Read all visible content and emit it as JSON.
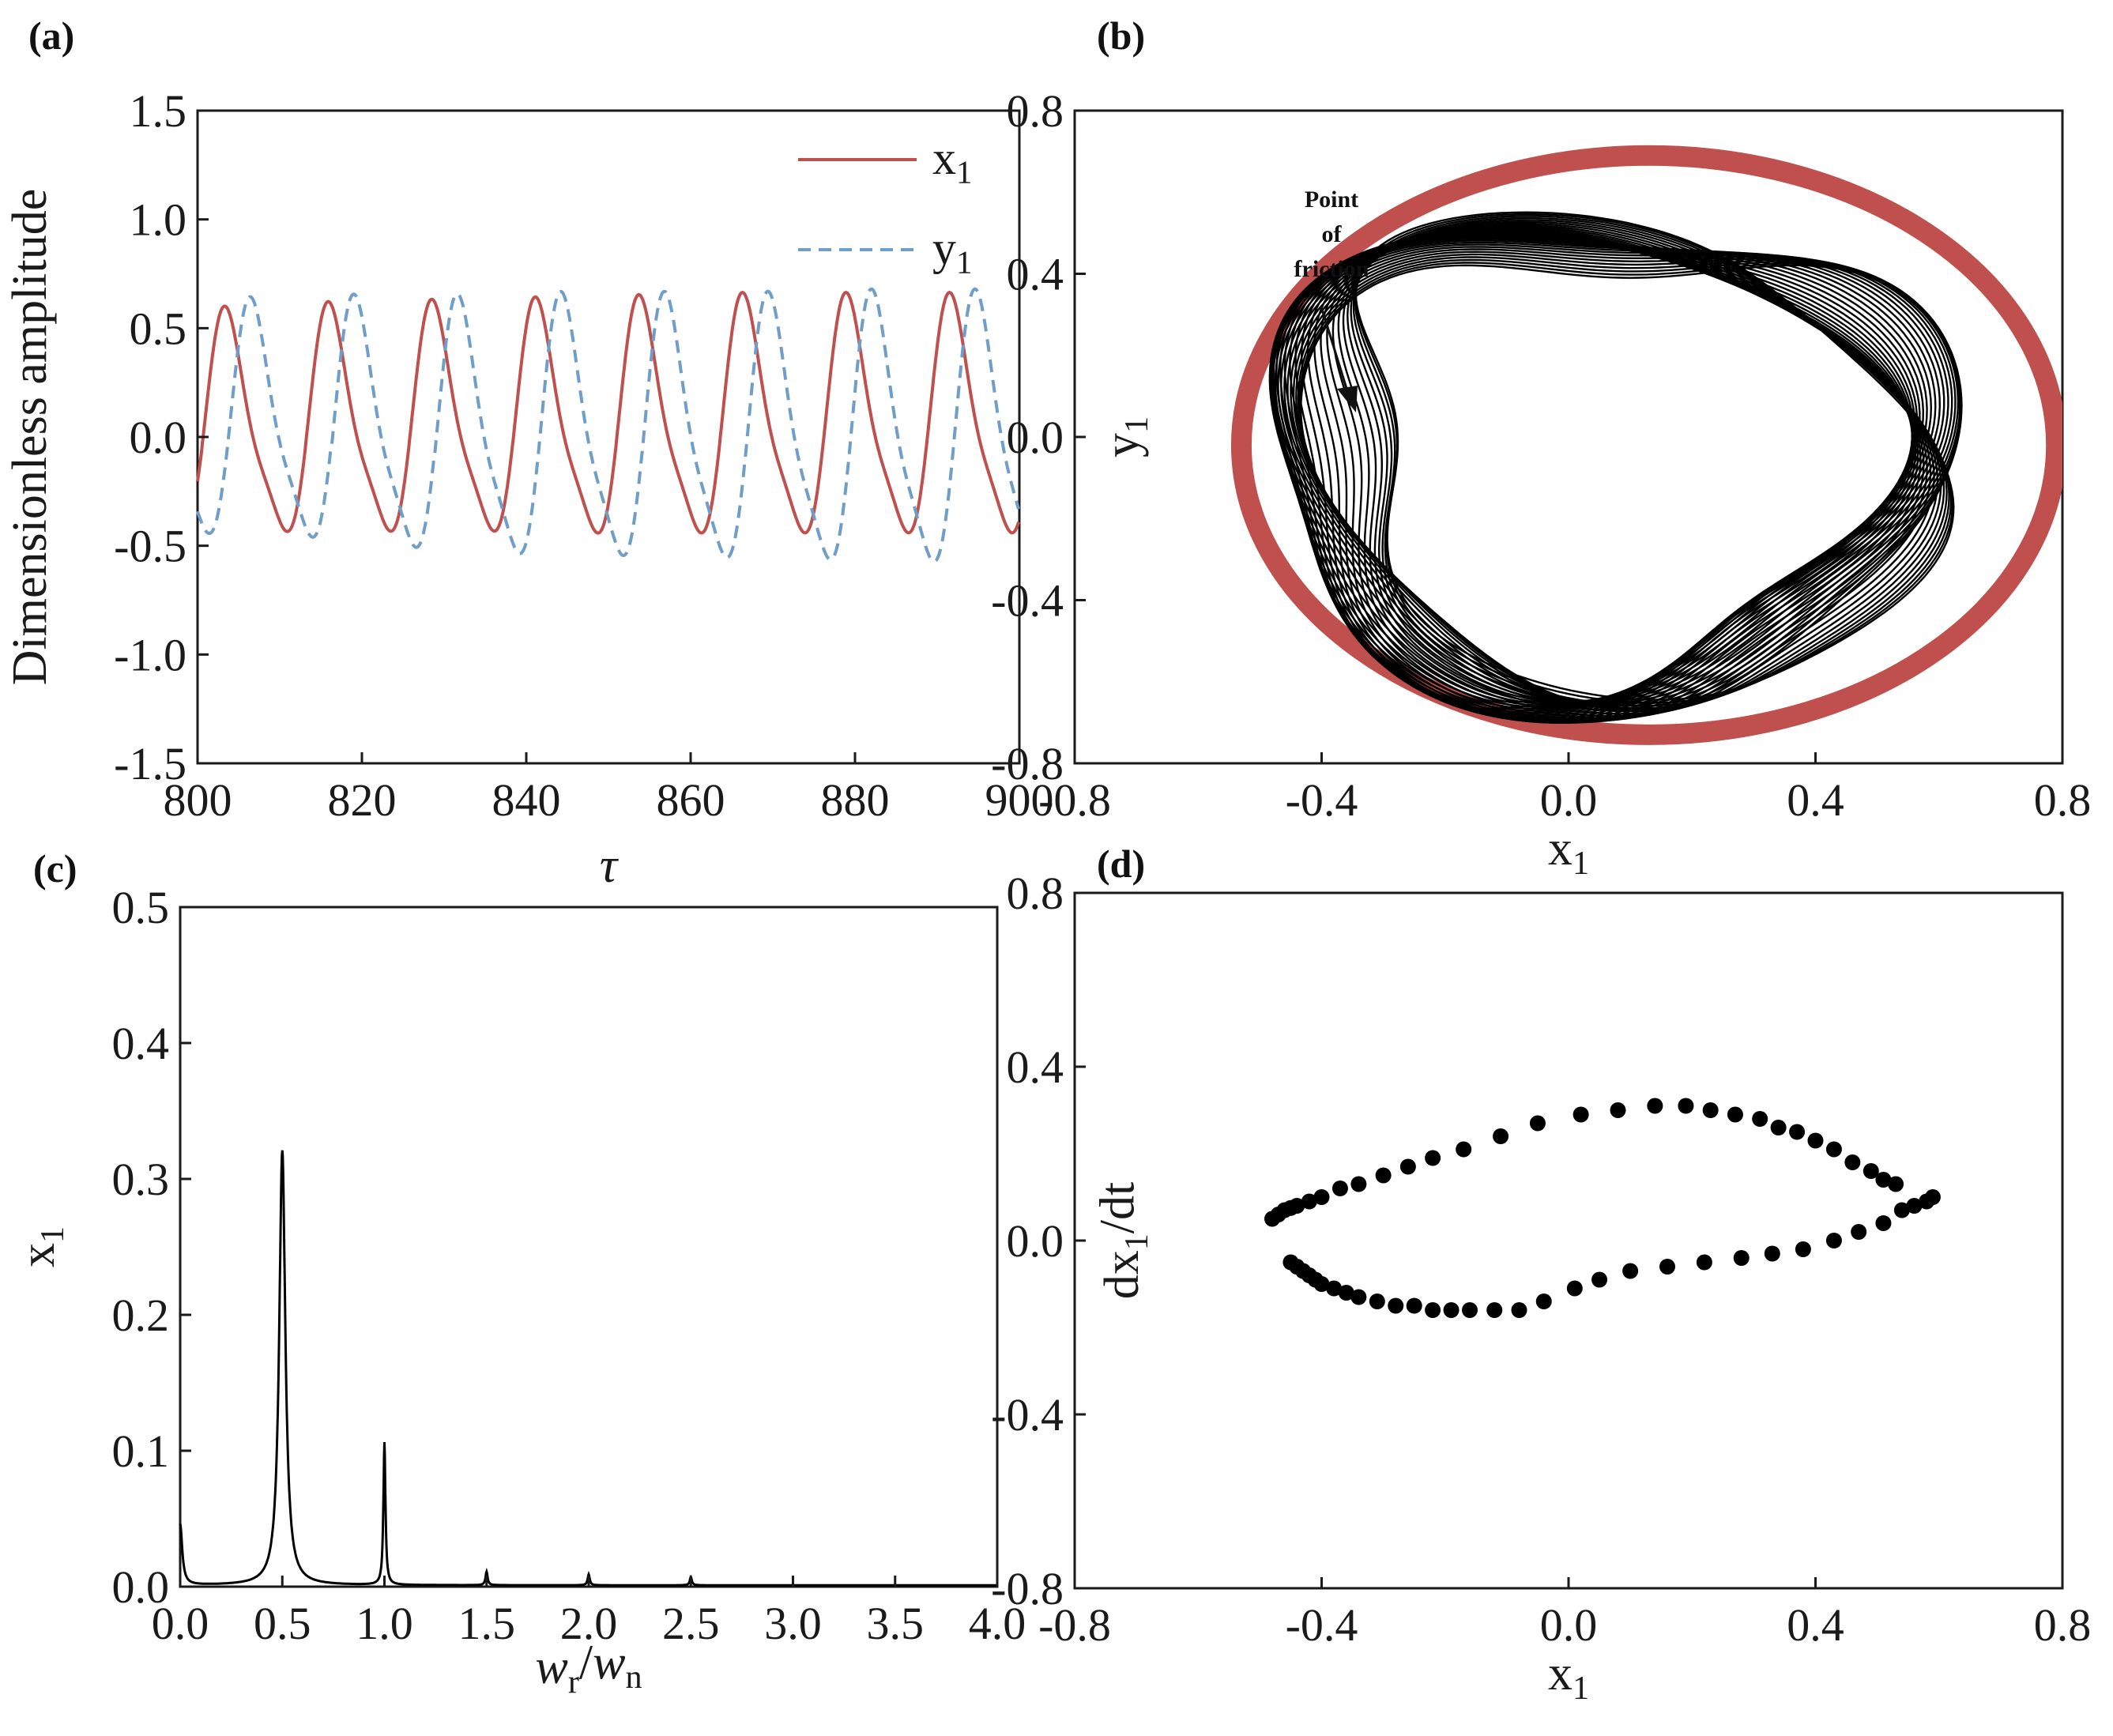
{
  "colors": {
    "red": "#c0504d",
    "blue": "#6f9ec8",
    "black": "#000000"
  },
  "chart_data": [
    {
      "id": "a",
      "panel_label": "(a)",
      "type": "line",
      "xlabel": "τ",
      "ylabel": "Dimensionless amplitude",
      "xlim": [
        800,
        900
      ],
      "ylim": [
        -1.5,
        1.5
      ],
      "xticks": [
        "800",
        "820",
        "840",
        "860",
        "880",
        "900"
      ],
      "yticks": [
        "1.5",
        "1.0",
        "0.5",
        "0.0",
        "-0.5",
        "-1.0",
        "-1.5"
      ],
      "legend_position": "top-right",
      "series": [
        {
          "name": "x",
          "sub": "1",
          "style": "solid",
          "color": "#c0504d",
          "period": 12.6,
          "phase_start": 800.6,
          "peaks": [
            0.52,
            0.56,
            0.58,
            0.59,
            0.6,
            0.61,
            0.62,
            0.62
          ],
          "troughs": [
            -0.47,
            -0.49,
            -0.49,
            -0.49,
            -0.5,
            -0.5,
            -0.5,
            -0.5
          ]
        },
        {
          "name": "y",
          "sub": "1",
          "style": "dashed",
          "color": "#6f9ec8",
          "period": 12.6,
          "phase_start": 803.7,
          "peaks": [
            0.57,
            0.6,
            0.61,
            0.61,
            0.62,
            0.62,
            0.62,
            0.63
          ],
          "troughs": [
            -0.5,
            -0.52,
            -0.57,
            -0.6,
            -0.61,
            -0.62,
            -0.63,
            -0.64
          ]
        }
      ]
    },
    {
      "id": "b",
      "panel_label": "(b)",
      "type": "line",
      "xlabel": "x",
      "xlabel_sub": "1",
      "ylabel": "y",
      "ylabel_sub": "1",
      "xlim": [
        -0.8,
        0.8
      ],
      "ylim": [
        -0.8,
        0.8
      ],
      "xticks": [
        "-0.8",
        "-0.4",
        "0.0",
        "0.4",
        "0.8"
      ],
      "yticks": [
        "0.8",
        "0.4",
        "0.0",
        "-0.4",
        "-0.8"
      ],
      "annotation": [
        "Point",
        "of",
        "friction"
      ],
      "rub_ring": {
        "center": [
          0.13,
          -0.02
        ],
        "radius_x": 0.66,
        "radius_y": 0.71,
        "color": "#c0504d"
      },
      "orbit": {
        "color": "#000000",
        "turns": 38
      }
    },
    {
      "id": "c",
      "panel_label": "(c)",
      "type": "line",
      "xlabel": "w",
      "xlabel_sub_r": "r",
      "xlabel_sub_n": "n",
      "ylabel": "x",
      "ylabel_sub": "1",
      "xlim": [
        0,
        4
      ],
      "ylim": [
        0,
        0.5
      ],
      "xticks": [
        "0.0",
        "0.5",
        "1.0",
        "1.5",
        "2.0",
        "2.5",
        "3.0",
        "3.5",
        "4.0"
      ],
      "yticks": [
        "0.5",
        "0.4",
        "0.3",
        "0.2",
        "0.1",
        "0.0"
      ],
      "peaks": [
        {
          "x": 0.0,
          "y": 0.045
        },
        {
          "x": 0.5,
          "y": 0.32
        },
        {
          "x": 1.0,
          "y": 0.105
        },
        {
          "x": 1.5,
          "y": 0.01
        },
        {
          "x": 2.0,
          "y": 0.008
        },
        {
          "x": 2.5,
          "y": 0.006
        }
      ]
    },
    {
      "id": "d",
      "panel_label": "(d)",
      "type": "scatter",
      "xlabel": "x",
      "xlabel_sub": "1",
      "ylabel": "dx",
      "ylabel_sub": "1",
      "ylabel_tail": "/dt",
      "xlim": [
        -0.8,
        0.8
      ],
      "ylim": [
        -0.8,
        0.8
      ],
      "xticks": [
        "-0.8",
        "-0.4",
        "0.0",
        "0.4",
        "0.8"
      ],
      "yticks": [
        "0.8",
        "0.4",
        "0.0",
        "-0.4",
        "-0.8"
      ],
      "points": [
        [
          -0.48,
          0.05
        ],
        [
          -0.47,
          0.06
        ],
        [
          -0.46,
          0.07
        ],
        [
          -0.45,
          0.075
        ],
        [
          -0.44,
          0.08
        ],
        [
          -0.42,
          0.09
        ],
        [
          -0.4,
          0.1
        ],
        [
          -0.37,
          0.12
        ],
        [
          -0.34,
          0.13
        ],
        [
          -0.3,
          0.15
        ],
        [
          -0.26,
          0.17
        ],
        [
          -0.22,
          0.19
        ],
        [
          -0.17,
          0.21
        ],
        [
          -0.11,
          0.24
        ],
        [
          -0.05,
          0.27
        ],
        [
          0.02,
          0.29
        ],
        [
          0.08,
          0.3
        ],
        [
          0.14,
          0.31
        ],
        [
          0.19,
          0.31
        ],
        [
          0.23,
          0.3
        ],
        [
          0.27,
          0.29
        ],
        [
          0.31,
          0.28
        ],
        [
          0.34,
          0.26
        ],
        [
          0.37,
          0.25
        ],
        [
          0.4,
          0.23
        ],
        [
          0.43,
          0.21
        ],
        [
          0.46,
          0.18
        ],
        [
          0.49,
          0.16
        ],
        [
          0.51,
          0.14
        ],
        [
          0.53,
          0.13
        ],
        [
          0.59,
          0.1
        ],
        [
          0.58,
          0.09
        ],
        [
          0.56,
          0.08
        ],
        [
          0.54,
          0.07
        ],
        [
          0.51,
          0.04
        ],
        [
          0.47,
          0.02
        ],
        [
          0.43,
          0.0
        ],
        [
          0.38,
          -0.02
        ],
        [
          0.33,
          -0.03
        ],
        [
          0.28,
          -0.04
        ],
        [
          0.22,
          -0.05
        ],
        [
          0.16,
          -0.06
        ],
        [
          0.1,
          -0.07
        ],
        [
          0.05,
          -0.09
        ],
        [
          0.01,
          -0.11
        ],
        [
          -0.04,
          -0.14
        ],
        [
          -0.08,
          -0.16
        ],
        [
          -0.12,
          -0.16
        ],
        [
          -0.16,
          -0.16
        ],
        [
          -0.19,
          -0.16
        ],
        [
          -0.22,
          -0.16
        ],
        [
          -0.25,
          -0.15
        ],
        [
          -0.28,
          -0.15
        ],
        [
          -0.31,
          -0.14
        ],
        [
          -0.34,
          -0.13
        ],
        [
          -0.36,
          -0.12
        ],
        [
          -0.38,
          -0.11
        ],
        [
          -0.4,
          -0.1
        ],
        [
          -0.41,
          -0.09
        ],
        [
          -0.42,
          -0.08
        ],
        [
          -0.43,
          -0.07
        ],
        [
          -0.44,
          -0.06
        ],
        [
          -0.45,
          -0.05
        ]
      ]
    }
  ]
}
